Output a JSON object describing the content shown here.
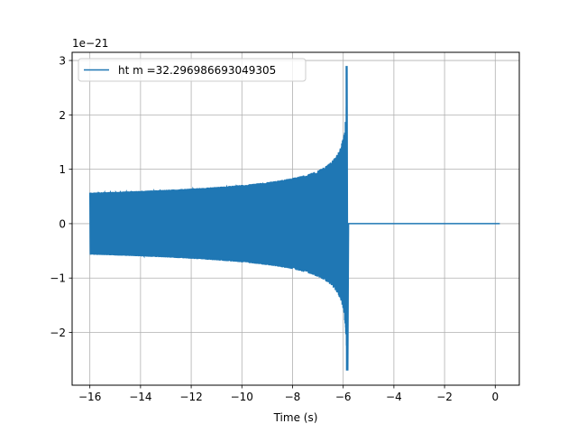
{
  "chart_data": {
    "type": "line",
    "title": "",
    "xlabel": "Time (s)",
    "ylabel": "",
    "y_scale_label": "1e−21",
    "xlim": [
      -16.7,
      0.95
    ],
    "ylim": [
      -2.97,
      3.15
    ],
    "xticks": [
      -16,
      -14,
      -12,
      -10,
      -8,
      -6,
      -4,
      -2,
      0
    ],
    "xtick_labels": [
      "−16",
      "−14",
      "−12",
      "−10",
      "−8",
      "−6",
      "−4",
      "−2",
      "0"
    ],
    "yticks": [
      -2,
      -1,
      0,
      1,
      2,
      3
    ],
    "ytick_labels": [
      "−2",
      "−1",
      "0",
      "1",
      "2",
      "3"
    ],
    "grid": true,
    "legend_position": "top-left",
    "series": [
      {
        "name": "ht m =32.296986693049305",
        "color": "#1f77b4",
        "waveform": {
          "t_start": -16.0,
          "t_merger": -5.85,
          "t_end": 0.18,
          "amplitude_start": 0.57,
          "amplitude_near_merger": 1.2,
          "peak_positive": 2.9,
          "peak_negative": -2.7,
          "post_merger_value": 0.0
        }
      }
    ]
  }
}
